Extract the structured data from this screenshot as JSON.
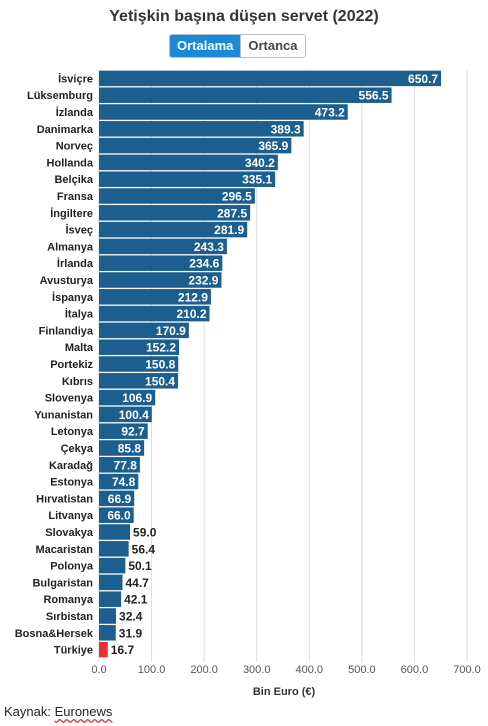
{
  "chart_data": {
    "type": "bar",
    "orientation": "horizontal",
    "title": "Yetişkin başına düşen servet (2022)",
    "xlabel": "Bin Euro (€)",
    "ylabel": "",
    "xlim": [
      0,
      700
    ],
    "x_ticks": [
      "0.0",
      "100.0",
      "200.0",
      "300.0",
      "400.0",
      "500.0",
      "600.0",
      "700.0"
    ],
    "grid": true,
    "categories": [
      "İsviçre",
      "Lüksemburg",
      "İzlanda",
      "Danimarka",
      "Norveç",
      "Hollanda",
      "Belçika",
      "Fransa",
      "İngiltere",
      "İsveç",
      "Almanya",
      "İrlanda",
      "Avusturya",
      "İspanya",
      "İtalya",
      "Finlandiya",
      "Malta",
      "Portekiz",
      "Kıbrıs",
      "Slovenya",
      "Yunanistan",
      "Letonya",
      "Çekya",
      "Karadağ",
      "Estonya",
      "Hırvatistan",
      "Litvanya",
      "Slovakya",
      "Macaristan",
      "Polonya",
      "Bulgaristan",
      "Romanya",
      "Sırbistan",
      "Bosna&Hersek",
      "Türkiye"
    ],
    "values": [
      650.7,
      556.5,
      473.2,
      389.3,
      365.9,
      340.2,
      335.1,
      296.5,
      287.5,
      281.9,
      243.3,
      234.6,
      232.9,
      212.9,
      210.2,
      170.9,
      152.2,
      150.8,
      150.4,
      106.9,
      100.4,
      92.7,
      85.8,
      77.8,
      74.8,
      66.9,
      66.0,
      59.0,
      56.4,
      50.1,
      44.7,
      42.1,
      32.4,
      31.9,
      16.7
    ],
    "value_labels": [
      "650.7",
      "556.5",
      "473.2",
      "389.3",
      "365.9",
      "340.2",
      "335.1",
      "296.5",
      "287.5",
      "281.9",
      "243.3",
      "234.6",
      "232.9",
      "212.9",
      "210.2",
      "170.9",
      "152.2",
      "150.8",
      "150.4",
      "106.9",
      "100.4",
      "92.7",
      "85.8",
      "77.8",
      "74.8",
      "66.9",
      "66.0",
      "59.0",
      "56.4",
      "50.1",
      "44.7",
      "42.1",
      "32.4",
      "31.9",
      "16.7"
    ],
    "highlight": "Türkiye",
    "colors": {
      "bar": "#1c5f8e",
      "highlight": "#e8312f",
      "grid": "#dddddd"
    }
  },
  "toggle": {
    "active": "Ortalama",
    "inactive": "Ortanca",
    "active_color": "#1a8ad8"
  },
  "source": {
    "prefix": "Kaynak: ",
    "name": "Euronews"
  }
}
